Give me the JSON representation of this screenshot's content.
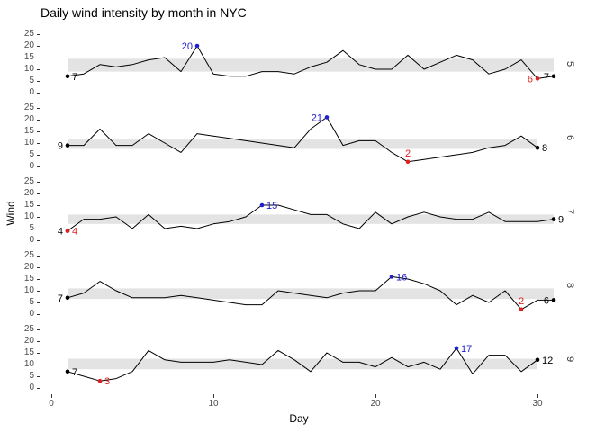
{
  "chart_data": {
    "type": "line",
    "title": "Daily wind intensity by month in NYC",
    "xlabel": "Day",
    "ylabel": "Wind",
    "facet_variable": "month",
    "x_ticks": [
      0,
      10,
      20,
      30
    ],
    "y_ticks": [
      0,
      5,
      10,
      15,
      20,
      25
    ],
    "ylim": [
      0,
      25
    ],
    "legend": "none",
    "grid": "off",
    "colors": {
      "line": "#000000",
      "endpoint": "#000000",
      "max": "#2020d0",
      "min": "#e02020",
      "band": "#e3e3e3",
      "axis_text": "#4d4d4d",
      "strip_text": "#333333",
      "tick": "#333333"
    },
    "panels": [
      {
        "month": "5",
        "band": [
          9,
          14.5
        ],
        "values": [
          7,
          8,
          12,
          11,
          12,
          14,
          15,
          9,
          20,
          8,
          7,
          7,
          9,
          9,
          8,
          11,
          13,
          18,
          12,
          10,
          10,
          16,
          10,
          13,
          16,
          14,
          8,
          10,
          14,
          6,
          7
        ],
        "annotations": [
          {
            "type": "first",
            "day": 1,
            "value": 7,
            "label": "7",
            "side": "right",
            "color": "endpoint"
          },
          {
            "type": "max",
            "day": 9,
            "value": 20,
            "label": "20",
            "side": "left",
            "color": "max"
          },
          {
            "type": "min",
            "day": 30,
            "value": 6,
            "label": "6",
            "side": "left",
            "color": "min"
          },
          {
            "type": "last",
            "day": 31,
            "value": 7,
            "label": "7",
            "side": "left",
            "color": "endpoint"
          }
        ]
      },
      {
        "month": "6",
        "band": [
          7.5,
          11.5
        ],
        "values": [
          9,
          9,
          16,
          9,
          9,
          14,
          10,
          6,
          14,
          13,
          12,
          11,
          10,
          9,
          8,
          16,
          21,
          9,
          11,
          11,
          6,
          2,
          3,
          4,
          5,
          6,
          8,
          9,
          13,
          8
        ],
        "annotations": [
          {
            "type": "first",
            "day": 1,
            "value": 9,
            "label": "9",
            "side": "left",
            "color": "endpoint"
          },
          {
            "type": "max",
            "day": 17,
            "value": 21,
            "label": "21",
            "side": "left",
            "color": "max"
          },
          {
            "type": "min",
            "day": 22,
            "value": 2,
            "label": "2",
            "side": "above",
            "color": "min"
          },
          {
            "type": "last",
            "day": 30,
            "value": 8,
            "label": "8",
            "side": "right",
            "color": "endpoint"
          }
        ]
      },
      {
        "month": "7",
        "band": [
          7,
          11
        ],
        "values": [
          4,
          9,
          9,
          10,
          5,
          11,
          5,
          6,
          5,
          7,
          8,
          10,
          15,
          15,
          13,
          11,
          11,
          7,
          5,
          12,
          7,
          10,
          12,
          10,
          9,
          9,
          12,
          8,
          8,
          8,
          9
        ],
        "annotations": [
          {
            "type": "first",
            "day": 1,
            "value": 4,
            "label": "4",
            "side": "left",
            "color": "endpoint"
          },
          {
            "type": "max",
            "day": 13,
            "value": 15,
            "label": "15",
            "side": "right",
            "color": "max"
          },
          {
            "type": "min",
            "day": 1,
            "value": 4,
            "label": "4",
            "side": "right",
            "color": "min"
          },
          {
            "type": "last",
            "day": 31,
            "value": 9,
            "label": "9",
            "side": "right",
            "color": "endpoint"
          }
        ]
      },
      {
        "month": "8",
        "band": [
          6.5,
          11
        ],
        "values": [
          7,
          9,
          14,
          10,
          7,
          7,
          7,
          8,
          7,
          6,
          5,
          4,
          4,
          10,
          9,
          8,
          7,
          9,
          10,
          10,
          16,
          15,
          13,
          10,
          4,
          8,
          5,
          10,
          2,
          6,
          6
        ],
        "annotations": [
          {
            "type": "first",
            "day": 1,
            "value": 7,
            "label": "7",
            "side": "left",
            "color": "endpoint"
          },
          {
            "type": "max",
            "day": 21,
            "value": 16,
            "label": "16",
            "side": "right",
            "color": "max"
          },
          {
            "type": "min",
            "day": 29,
            "value": 2,
            "label": "2",
            "side": "above",
            "color": "min"
          },
          {
            "type": "last",
            "day": 31,
            "value": 6,
            "label": "6",
            "side": "left",
            "color": "endpoint"
          }
        ]
      },
      {
        "month": "9",
        "band": [
          8,
          12.5
        ],
        "values": [
          7,
          5,
          3,
          4,
          7,
          16,
          12,
          11,
          11,
          11,
          12,
          11,
          10,
          16,
          12,
          7,
          15,
          11,
          11,
          9,
          13,
          9,
          11,
          8,
          17,
          6,
          14,
          14,
          7,
          12
        ],
        "annotations": [
          {
            "type": "first",
            "day": 1,
            "value": 7,
            "label": "7",
            "side": "right",
            "color": "endpoint"
          },
          {
            "type": "min",
            "day": 3,
            "value": 3,
            "label": "3",
            "side": "right",
            "color": "min"
          },
          {
            "type": "max",
            "day": 25,
            "value": 17,
            "label": "17",
            "side": "right",
            "color": "max"
          },
          {
            "type": "last",
            "day": 30,
            "value": 12,
            "label": "12",
            "side": "right",
            "color": "endpoint"
          }
        ]
      }
    ]
  }
}
